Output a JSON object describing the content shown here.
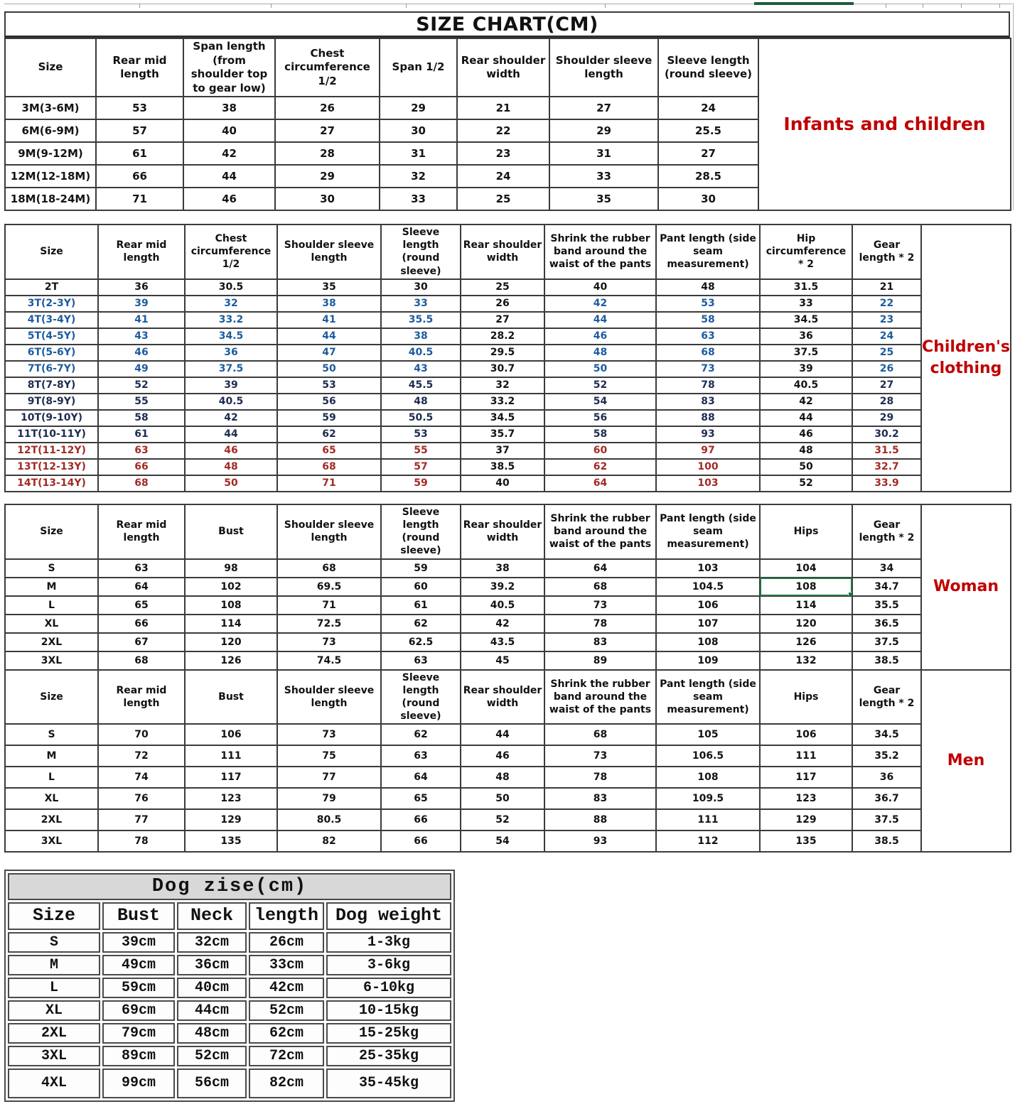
{
  "page": {
    "title": "SIZE CHART(CM)"
  },
  "side_labels": {
    "infants": "Infants and children",
    "children": "Children's clothing",
    "woman": "Woman",
    "men": "Men"
  },
  "colors": {
    "accent_red": "#C00000",
    "ink_blue": "#1d5c9e",
    "ink_navy": "#1e2c52",
    "ink_red": "#a32b26",
    "selection_green": "#217346"
  },
  "infant_table": {
    "headers": [
      "Size",
      "Rear mid length",
      "Span length (from shoulder top to gear low)",
      "Chest circumference 1/2",
      "Span 1/2",
      "Rear shoulder width",
      "Shoulder sleeve length",
      "Sleeve length (round sleeve)"
    ],
    "rows": [
      {
        "size": "3M(3-6M)",
        "ink": "black",
        "values": [
          "53",
          "38",
          "26",
          "29",
          "21",
          "27",
          "24"
        ]
      },
      {
        "size": "6M(6-9M)",
        "ink": "black",
        "values": [
          "57",
          "40",
          "27",
          "30",
          "22",
          "29",
          "25.5"
        ]
      },
      {
        "size": "9M(9-12M)",
        "ink": "black",
        "values": [
          "61",
          "42",
          "28",
          "31",
          "23",
          "31",
          "27"
        ]
      },
      {
        "size": "12M(12-18M)",
        "ink": "black",
        "values": [
          "66",
          "44",
          "29",
          "32",
          "24",
          "33",
          "28.5"
        ]
      },
      {
        "size": "18M(18-24M)",
        "ink": "black",
        "values": [
          "71",
          "46",
          "30",
          "33",
          "25",
          "35",
          "30"
        ]
      }
    ]
  },
  "children_table": {
    "headers": [
      "Size",
      "Rear mid length",
      "Chest circumference 1/2",
      "Shoulder sleeve length",
      "Sleeve length (round sleeve)",
      "Rear shoulder width",
      "Shrink the rubber band around the waist of the pants",
      "Pant length (side seam measurement)",
      "Hip circumference * 2",
      "Gear length * 2"
    ],
    "black_value_cols": [
      4,
      7
    ],
    "rows": [
      {
        "size": "2T",
        "ink": "black",
        "values": [
          "36",
          "30.5",
          "35",
          "30",
          "25",
          "40",
          "48",
          "31.5",
          "21"
        ]
      },
      {
        "size": "3T(2-3Y)",
        "ink": "blue",
        "values": [
          "39",
          "32",
          "38",
          "33",
          "26",
          "42",
          "53",
          "33",
          "22"
        ]
      },
      {
        "size": "4T(3-4Y)",
        "ink": "blue",
        "values": [
          "41",
          "33.2",
          "41",
          "35.5",
          "27",
          "44",
          "58",
          "34.5",
          "23"
        ]
      },
      {
        "size": "5T(4-5Y)",
        "ink": "blue",
        "values": [
          "43",
          "34.5",
          "44",
          "38",
          "28.2",
          "46",
          "63",
          "36",
          "24"
        ]
      },
      {
        "size": "6T(5-6Y)",
        "ink": "blue",
        "values": [
          "46",
          "36",
          "47",
          "40.5",
          "29.5",
          "48",
          "68",
          "37.5",
          "25"
        ]
      },
      {
        "size": "7T(6-7Y)",
        "ink": "blue",
        "values": [
          "49",
          "37.5",
          "50",
          "43",
          "30.7",
          "50",
          "73",
          "39",
          "26"
        ]
      },
      {
        "size": "8T(7-8Y)",
        "ink": "navy",
        "values": [
          "52",
          "39",
          "53",
          "45.5",
          "32",
          "52",
          "78",
          "40.5",
          "27"
        ]
      },
      {
        "size": "9T(8-9Y)",
        "ink": "navy",
        "values": [
          "55",
          "40.5",
          "56",
          "48",
          "33.2",
          "54",
          "83",
          "42",
          "28"
        ]
      },
      {
        "size": "10T(9-10Y)",
        "ink": "navy",
        "values": [
          "58",
          "42",
          "59",
          "50.5",
          "34.5",
          "56",
          "88",
          "44",
          "29"
        ]
      },
      {
        "size": "11T(10-11Y)",
        "ink": "navy",
        "values": [
          "61",
          "44",
          "62",
          "53",
          "35.7",
          "58",
          "93",
          "46",
          "30.2"
        ]
      },
      {
        "size": "12T(11-12Y)",
        "ink": "red",
        "values": [
          "63",
          "46",
          "65",
          "55",
          "37",
          "60",
          "97",
          "48",
          "31.5"
        ]
      },
      {
        "size": "13T(12-13Y)",
        "ink": "red",
        "values": [
          "66",
          "48",
          "68",
          "57",
          "38.5",
          "62",
          "100",
          "50",
          "32.7"
        ]
      },
      {
        "size": "14T(13-14Y)",
        "ink": "red",
        "values": [
          "68",
          "50",
          "71",
          "59",
          "40",
          "64",
          "103",
          "52",
          "33.9"
        ]
      }
    ]
  },
  "woman_table": {
    "headers": [
      "Size",
      "Rear mid length",
      "Bust",
      "Shoulder sleeve length",
      "Sleeve length (round sleeve)",
      "Rear shoulder width",
      "Shrink the rubber band around the waist of the pants",
      "Pant length (side seam measurement)",
      "Hips",
      "Gear length * 2"
    ],
    "selection": {
      "row": 1,
      "col": 7
    },
    "rows": [
      {
        "size": "S",
        "ink": "black",
        "values": [
          "63",
          "98",
          "68",
          "59",
          "38",
          "64",
          "103",
          "104",
          "34"
        ]
      },
      {
        "size": "M",
        "ink": "black",
        "values": [
          "64",
          "102",
          "69.5",
          "60",
          "39.2",
          "68",
          "104.5",
          "108",
          "34.7"
        ]
      },
      {
        "size": "L",
        "ink": "black",
        "values": [
          "65",
          "108",
          "71",
          "61",
          "40.5",
          "73",
          "106",
          "114",
          "35.5"
        ]
      },
      {
        "size": "XL",
        "ink": "black",
        "values": [
          "66",
          "114",
          "72.5",
          "62",
          "42",
          "78",
          "107",
          "120",
          "36.5"
        ]
      },
      {
        "size": "2XL",
        "ink": "black",
        "values": [
          "67",
          "120",
          "73",
          "62.5",
          "43.5",
          "83",
          "108",
          "126",
          "37.5"
        ]
      },
      {
        "size": "3XL",
        "ink": "black",
        "values": [
          "68",
          "126",
          "74.5",
          "63",
          "45",
          "89",
          "109",
          "132",
          "38.5"
        ]
      }
    ]
  },
  "men_table": {
    "headers": [
      "Size",
      "Rear mid length",
      "Bust",
      "Shoulder sleeve length",
      "Sleeve length (round sleeve)",
      "Rear shoulder width",
      "Shrink the rubber band around the waist of the pants",
      "Pant length (side seam measurement)",
      "Hips",
      "Gear length * 2"
    ],
    "rows": [
      {
        "size": "S",
        "ink": "black",
        "values": [
          "70",
          "106",
          "73",
          "62",
          "44",
          "68",
          "105",
          "106",
          "34.5"
        ]
      },
      {
        "size": "M",
        "ink": "black",
        "values": [
          "72",
          "111",
          "75",
          "63",
          "46",
          "73",
          "106.5",
          "111",
          "35.2"
        ]
      },
      {
        "size": "L",
        "ink": "black",
        "values": [
          "74",
          "117",
          "77",
          "64",
          "48",
          "78",
          "108",
          "117",
          "36"
        ]
      },
      {
        "size": "XL",
        "ink": "black",
        "values": [
          "76",
          "123",
          "79",
          "65",
          "50",
          "83",
          "109.5",
          "123",
          "36.7"
        ]
      },
      {
        "size": "2XL",
        "ink": "black",
        "values": [
          "77",
          "129",
          "80.5",
          "66",
          "52",
          "88",
          "111",
          "129",
          "37.5"
        ]
      },
      {
        "size": "3XL",
        "ink": "black",
        "values": [
          "78",
          "135",
          "82",
          "66",
          "54",
          "93",
          "112",
          "135",
          "38.5"
        ]
      }
    ]
  },
  "dog_table": {
    "title": "Dog zise(cm)",
    "headers": [
      "Size",
      "Bust",
      "Neck",
      "length",
      "Dog weight"
    ],
    "rows": [
      {
        "size": "S",
        "values": [
          "39cm",
          "32cm",
          "26cm",
          "1-3kg"
        ]
      },
      {
        "size": "M",
        "values": [
          "49cm",
          "36cm",
          "33cm",
          "3-6kg"
        ]
      },
      {
        "size": "L",
        "values": [
          "59cm",
          "40cm",
          "42cm",
          "6-10kg"
        ]
      },
      {
        "size": "XL",
        "values": [
          "69cm",
          "44cm",
          "52cm",
          "10-15kg"
        ]
      },
      {
        "size": "2XL",
        "values": [
          "79cm",
          "48cm",
          "62cm",
          "15-25kg"
        ]
      },
      {
        "size": "3XL",
        "values": [
          "89cm",
          "52cm",
          "72cm",
          "25-35kg"
        ]
      },
      {
        "size": "4XL",
        "values": [
          "99cm",
          "56cm",
          "82cm",
          "35-45kg"
        ],
        "tall": true
      }
    ]
  }
}
